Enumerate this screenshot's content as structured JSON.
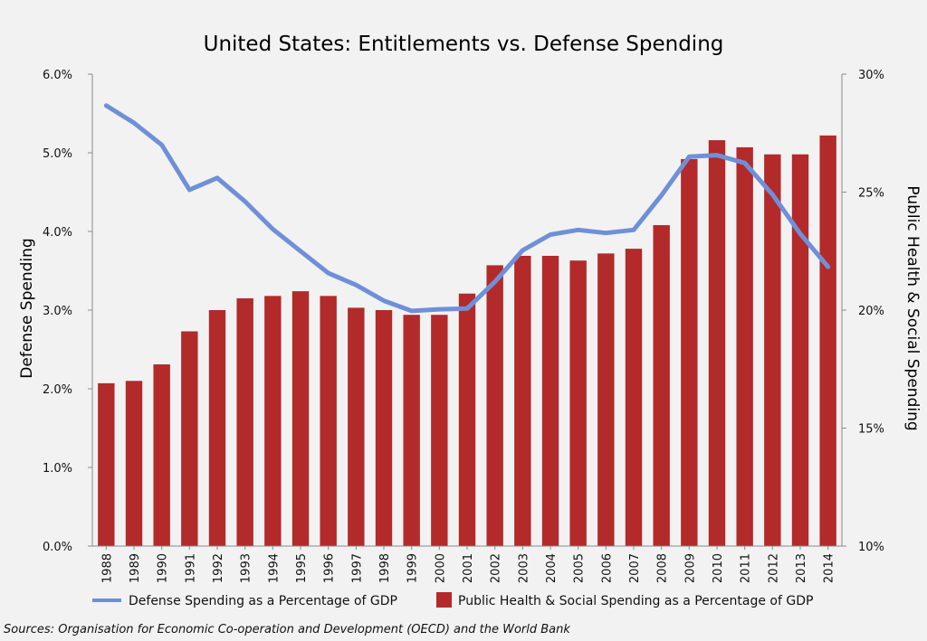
{
  "chart_data": {
    "type": "bar",
    "title": "United States: Entitlements vs. Defense Spending",
    "categories": [
      "1988",
      "1989",
      "1990",
      "1991",
      "1992",
      "1993",
      "1994",
      "1995",
      "1996",
      "1997",
      "1998",
      "1999",
      "2000",
      "2001",
      "2002",
      "2003",
      "2004",
      "2005",
      "2006",
      "2007",
      "2008",
      "2009",
      "2010",
      "2011",
      "2012",
      "2013",
      "2014"
    ],
    "y_left": {
      "label": "Defense Spending",
      "range": [
        0,
        6
      ],
      "ticks": [
        "0.0%",
        "1.0%",
        "2.0%",
        "3.0%",
        "4.0%",
        "5.0%",
        "6.0%"
      ]
    },
    "y_right": {
      "label": "Public Health & Social Spending",
      "range": [
        10,
        30
      ],
      "ticks": [
        "10%",
        "15%",
        "20%",
        "25%",
        "30%"
      ]
    },
    "series": [
      {
        "name": "Public Health & Social Spending as a Percentage of GDP",
        "type": "bar",
        "axis": "right",
        "color": "#b22a2a",
        "values": [
          16.9,
          17.0,
          17.7,
          19.1,
          20.0,
          20.5,
          20.6,
          20.8,
          20.6,
          20.1,
          20.0,
          19.8,
          19.8,
          20.7,
          21.9,
          22.3,
          22.3,
          22.1,
          22.4,
          22.6,
          23.6,
          26.4,
          27.2,
          26.9,
          26.6,
          26.6,
          27.4
        ]
      },
      {
        "name": "Defense Spending as a Percentage of GDP",
        "type": "line",
        "axis": "left",
        "color": "#6f90d8",
        "values": [
          5.6,
          5.38,
          5.1,
          4.53,
          4.68,
          4.38,
          4.03,
          3.75,
          3.47,
          3.32,
          3.12,
          2.99,
          3.01,
          3.02,
          3.36,
          3.76,
          3.96,
          4.02,
          3.98,
          4.02,
          4.46,
          4.95,
          4.97,
          4.87,
          4.47,
          3.97,
          3.55
        ]
      }
    ],
    "legend_position": "bottom",
    "grid": false
  },
  "source": "Sources: Organisation for Economic Co-operation and Development (OECD) and the World Bank"
}
